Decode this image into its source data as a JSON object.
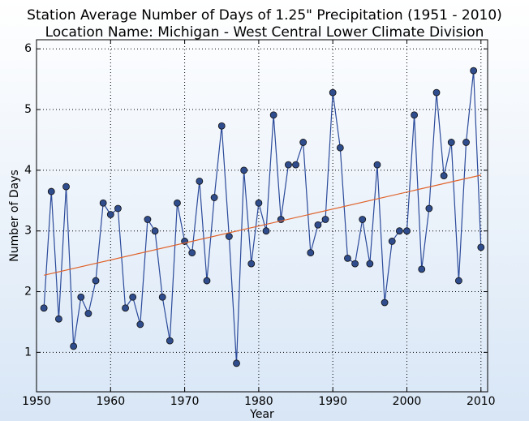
{
  "chart_data": {
    "type": "line",
    "title": "Station Average Number of Days of 1.25\" Precipitation (1951 - 2010)",
    "subtitle": "Location Name: Michigan - West Central Lower Climate Division",
    "x_label": "Year",
    "y_label": "Number of Days",
    "x": [
      1951,
      1952,
      1953,
      1954,
      1955,
      1956,
      1957,
      1958,
      1959,
      1960,
      1961,
      1962,
      1963,
      1964,
      1965,
      1966,
      1967,
      1968,
      1969,
      1970,
      1971,
      1972,
      1973,
      1974,
      1975,
      1976,
      1977,
      1978,
      1979,
      1980,
      1981,
      1982,
      1983,
      1984,
      1985,
      1986,
      1987,
      1988,
      1989,
      1990,
      1991,
      1992,
      1993,
      1994,
      1995,
      1996,
      1997,
      1998,
      1999,
      2000,
      2001,
      2002,
      2003,
      2004,
      2005,
      2006,
      2007,
      2008,
      2009,
      2010
    ],
    "series": [
      {
        "color": "#2b4a9a",
        "marker_color": "#2f4c8c",
        "values": [
          1.73,
          3.65,
          1.55,
          3.73,
          1.1,
          1.91,
          1.64,
          2.18,
          3.46,
          3.27,
          3.37,
          1.73,
          1.91,
          1.46,
          3.19,
          3.0,
          1.91,
          1.19,
          3.46,
          2.83,
          2.64,
          3.82,
          2.18,
          3.55,
          4.73,
          2.91,
          0.82,
          4.0,
          2.46,
          3.46,
          3.0,
          4.91,
          3.19,
          4.09,
          4.09,
          4.46,
          2.64,
          3.1,
          3.19,
          5.28,
          4.37,
          2.55,
          2.46,
          3.19,
          2.46,
          4.09,
          1.82,
          2.83,
          3.0,
          3.0,
          4.91,
          2.37,
          3.37,
          5.28,
          3.91,
          4.46,
          2.18,
          4.46,
          5.64,
          2.73
        ]
      },
      {
        "color": "#e0622a",
        "x": [
          1951,
          2010
        ],
        "values": [
          2.27,
          3.92
        ]
      }
    ],
    "xlim": [
      1950,
      2010.9
    ],
    "xticks": [
      1950,
      1960,
      1970,
      1980,
      1990,
      2000,
      2010
    ],
    "ylim": [
      0.35,
      6.15
    ],
    "yticks": [
      1,
      2,
      3,
      4,
      5,
      6
    ],
    "grid": true
  }
}
